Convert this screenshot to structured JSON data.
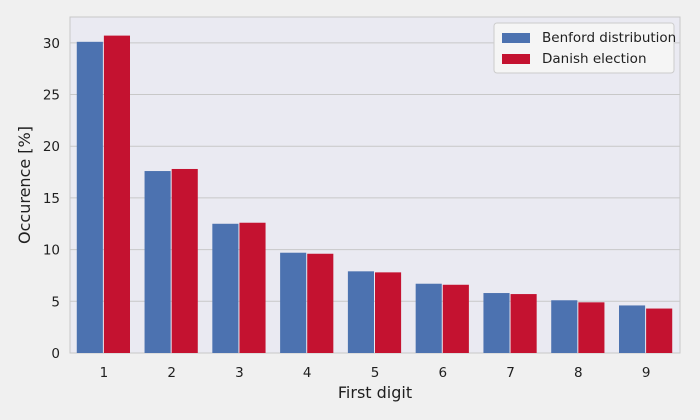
{
  "chart_data": {
    "type": "bar",
    "categories": [
      "1",
      "2",
      "3",
      "4",
      "5",
      "6",
      "7",
      "8",
      "9"
    ],
    "series": [
      {
        "name": "Benford distribution",
        "color": "#4c72b0",
        "values": [
          30.1,
          17.6,
          12.5,
          9.7,
          7.9,
          6.7,
          5.8,
          5.1,
          4.6
        ]
      },
      {
        "name": "Danish election",
        "color": "#c41230",
        "values": [
          30.7,
          17.8,
          12.6,
          9.6,
          7.8,
          6.6,
          5.7,
          4.9,
          4.3
        ]
      }
    ],
    "xlabel": "First digit",
    "ylabel": "Occurence [%]",
    "ylim": [
      0,
      32.5
    ],
    "yticks": [
      0,
      5,
      10,
      15,
      20,
      25,
      30
    ],
    "grid": true,
    "legend_position": "top-right"
  }
}
